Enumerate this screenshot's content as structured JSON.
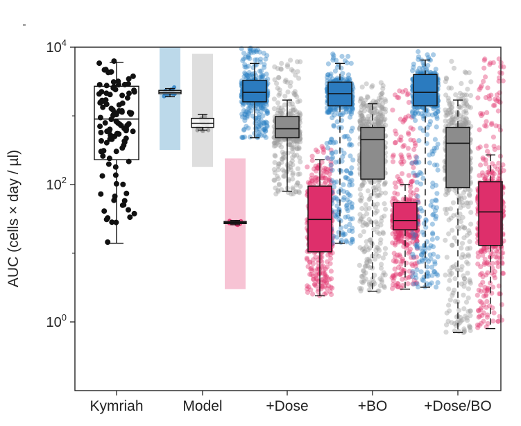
{
  "chart_data": {
    "type": "box-strip",
    "title": "",
    "xlabel": "",
    "ylabel": "AUC (cells × day / µl)",
    "y_scale": "log10",
    "ylim": [
      0.1,
      10000
    ],
    "y_ticks": [
      {
        "value": 1,
        "base": "10",
        "exp": "0"
      },
      {
        "value": 100,
        "base": "10",
        "exp": "2"
      },
      {
        "value": 10000,
        "base": "10",
        "exp": "4"
      }
    ],
    "categories": [
      "Kymriah",
      "Model",
      "+Dose",
      "+BO",
      "+Dose/BO"
    ],
    "colors": {
      "black": "#111111",
      "blue": "#2a7fc4",
      "gray": "#9a9a9a",
      "pink": "#e0346f",
      "blue_box": "#2b7bbf",
      "gray_box": "#8c8c8c",
      "pink_box": "#de2f6b",
      "blue_band": "#bcd9ea",
      "gray_band": "#dedede",
      "pink_band": "#f7c3d4"
    },
    "boxes": [
      {
        "category": "Kymriah",
        "color": "black",
        "fill": "none",
        "whisker_low": 14,
        "q1": 230,
        "median": 900,
        "q3": 2700,
        "whisker_high": 6000,
        "n_points": 110,
        "point_low": 14,
        "point_high": 9000,
        "dashed": false
      },
      {
        "category": "Model",
        "color": "blue",
        "fill": "none",
        "whisker_low": 1900,
        "q1": 2100,
        "median": 2200,
        "q3": 2350,
        "whisker_high": 2500,
        "n_points": 18,
        "point_low": 1750,
        "point_high": 2700,
        "band": [
          320,
          10000
        ],
        "dashed": false
      },
      {
        "category": "Model",
        "color": "gray",
        "fill": "none",
        "whisker_low": 620,
        "q1": 680,
        "median": 780,
        "q3": 920,
        "whisker_high": 1050,
        "n_points": 18,
        "point_low": 600,
        "point_high": 1150,
        "band": [
          180,
          8000
        ],
        "dashed": false
      },
      {
        "category": "Model",
        "color": "pink",
        "fill": "none",
        "whisker_low": 26,
        "q1": 27,
        "median": 28,
        "q3": 29,
        "whisker_high": 30,
        "n_points": 14,
        "point_low": 25,
        "point_high": 31,
        "band": [
          3,
          240
        ],
        "dashed": false
      },
      {
        "category": "+Dose",
        "color": "blue",
        "fill": "blue_box",
        "whisker_low": 480,
        "q1": 1600,
        "median": 2200,
        "q3": 3300,
        "whisker_high": 5800,
        "n_points": 400,
        "point_low": 480,
        "point_high": 10000,
        "dashed": false
      },
      {
        "category": "+Dose",
        "color": "gray",
        "fill": "gray_box",
        "whisker_low": 80,
        "q1": 480,
        "median": 650,
        "q3": 980,
        "whisker_high": 1700,
        "n_points": 400,
        "point_low": 70,
        "point_high": 6500,
        "dashed": false
      },
      {
        "category": "+Dose",
        "color": "pink",
        "fill": "pink_box",
        "whisker_low": 2.4,
        "q1": 10.5,
        "median": 31,
        "q3": 95,
        "whisker_high": 230,
        "n_points": 400,
        "point_low": 2.4,
        "point_high": 420,
        "dashed": false
      },
      {
        "category": "+BO",
        "color": "blue",
        "fill": "blue_box",
        "whisker_low": 14,
        "q1": 1400,
        "median": 2100,
        "q3": 3100,
        "whisker_high": 5800,
        "n_points": 500,
        "point_low": 14,
        "point_high": 9000,
        "dashed": true
      },
      {
        "category": "+BO",
        "color": "gray",
        "fill": "gray_box",
        "whisker_low": 2.8,
        "q1": 120,
        "median": 450,
        "q3": 680,
        "whisker_high": 1500,
        "n_points": 500,
        "point_low": 2.8,
        "point_high": 3300,
        "dashed": true
      },
      {
        "category": "+BO",
        "color": "pink",
        "fill": "pink_box",
        "whisker_low": 3,
        "q1": 22,
        "median": 30,
        "q3": 55,
        "whisker_high": 100,
        "n_points": 500,
        "point_low": 3,
        "point_high": 2500,
        "dashed": true
      },
      {
        "category": "+Dose/BO",
        "color": "blue",
        "fill": "blue_box",
        "whisker_low": 3.2,
        "q1": 1400,
        "median": 2200,
        "q3": 4000,
        "whisker_high": 6500,
        "n_points": 500,
        "point_low": 3.2,
        "point_high": 10000,
        "dashed": true
      },
      {
        "category": "+Dose/BO",
        "color": "gray",
        "fill": "gray_box",
        "whisker_low": 0.7,
        "q1": 90,
        "median": 400,
        "q3": 680,
        "whisker_high": 1700,
        "n_points": 500,
        "point_low": 0.7,
        "point_high": 8000,
        "dashed": true
      },
      {
        "category": "+Dose/BO",
        "color": "pink",
        "fill": "pink_box",
        "whisker_low": 0.8,
        "q1": 13,
        "median": 40,
        "q3": 110,
        "whisker_high": 270,
        "n_points": 500,
        "point_low": 0.8,
        "point_high": 7500,
        "dashed": true
      }
    ]
  }
}
